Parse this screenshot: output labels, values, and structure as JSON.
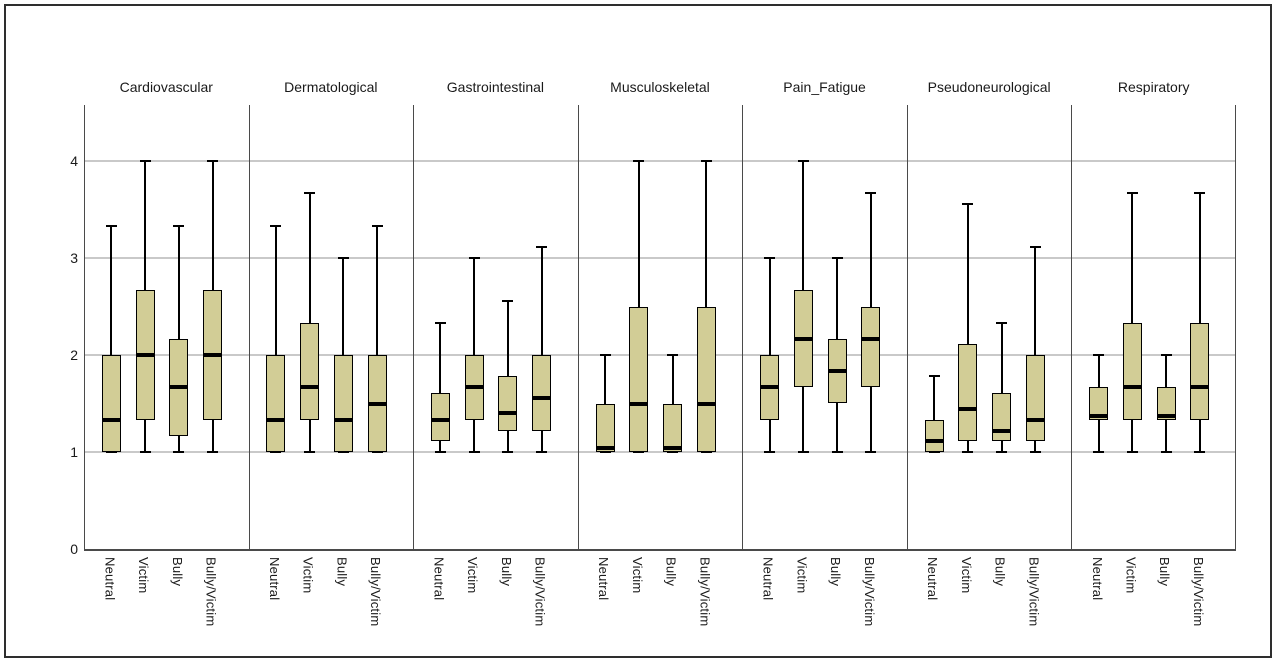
{
  "figure": {
    "background": "#ffffff",
    "border_color": "#2e2e2e"
  },
  "chart_data": {
    "type": "boxplot",
    "layout": "7 side-by-side panels, 4 boxplots per panel, shared y axis",
    "title": "",
    "xlabel": "",
    "ylabel": "",
    "categories": [
      "Neutral",
      "Victim",
      "Bully",
      "Bully/Victim"
    ],
    "y_axis": {
      "ticks": [
        0,
        1,
        2,
        3,
        4
      ],
      "min": 0,
      "max": 4.58,
      "gridlines_at": [
        1,
        2,
        3,
        4
      ]
    },
    "panels": [
      {
        "title": "Cardiovascular",
        "boxes": [
          {
            "category": "Neutral",
            "whisker_low": 1,
            "q1": 1.0,
            "median": 1.33,
            "q3": 2.0,
            "whisker_high": 3.33
          },
          {
            "category": "Victim",
            "whisker_low": 1,
            "q1": 1.33,
            "median": 2.0,
            "q3": 2.67,
            "whisker_high": 4.0
          },
          {
            "category": "Bully",
            "whisker_low": 1,
            "q1": 1.17,
            "median": 1.67,
            "q3": 2.17,
            "whisker_high": 3.33
          },
          {
            "category": "Bully/Victim",
            "whisker_low": 1,
            "q1": 1.33,
            "median": 2.0,
            "q3": 2.67,
            "whisker_high": 4.0
          }
        ]
      },
      {
        "title": "Dermatological",
        "boxes": [
          {
            "category": "Neutral",
            "whisker_low": 1,
            "q1": 1.0,
            "median": 1.33,
            "q3": 2.0,
            "whisker_high": 3.33
          },
          {
            "category": "Victim",
            "whisker_low": 1,
            "q1": 1.33,
            "median": 1.67,
            "q3": 2.33,
            "whisker_high": 3.67
          },
          {
            "category": "Bully",
            "whisker_low": 1,
            "q1": 1.0,
            "median": 1.33,
            "q3": 2.0,
            "whisker_high": 3.0
          },
          {
            "category": "Bully/Victim",
            "whisker_low": 1,
            "q1": 1.0,
            "median": 1.5,
            "q3": 2.0,
            "whisker_high": 3.33
          }
        ]
      },
      {
        "title": "Gastrointestinal",
        "boxes": [
          {
            "category": "Neutral",
            "whisker_low": 1,
            "q1": 1.11,
            "median": 1.33,
            "q3": 1.61,
            "whisker_high": 2.33
          },
          {
            "category": "Victim",
            "whisker_low": 1,
            "q1": 1.33,
            "median": 1.67,
            "q3": 2.0,
            "whisker_high": 3.0
          },
          {
            "category": "Bully",
            "whisker_low": 1,
            "q1": 1.22,
            "median": 1.4,
            "q3": 1.78,
            "whisker_high": 2.56
          },
          {
            "category": "Bully/Victim",
            "whisker_low": 1,
            "q1": 1.22,
            "median": 1.56,
            "q3": 2.0,
            "whisker_high": 3.11
          }
        ]
      },
      {
        "title": "Musculoskeletal",
        "boxes": [
          {
            "category": "Neutral",
            "whisker_low": 1,
            "q1": 1.0,
            "median": 1.0,
            "q3": 1.5,
            "whisker_high": 2.0
          },
          {
            "category": "Victim",
            "whisker_low": 1,
            "q1": 1.0,
            "median": 1.5,
            "q3": 2.5,
            "whisker_high": 4.0
          },
          {
            "category": "Bully",
            "whisker_low": 1,
            "q1": 1.0,
            "median": 1.0,
            "q3": 1.5,
            "whisker_high": 2.0
          },
          {
            "category": "Bully/Victim",
            "whisker_low": 1,
            "q1": 1.0,
            "median": 1.5,
            "q3": 2.5,
            "whisker_high": 4.0
          }
        ]
      },
      {
        "title": "Pain_Fatigue",
        "boxes": [
          {
            "category": "Neutral",
            "whisker_low": 1,
            "q1": 1.33,
            "median": 1.67,
            "q3": 2.0,
            "whisker_high": 3.0
          },
          {
            "category": "Victim",
            "whisker_low": 1,
            "q1": 1.67,
            "median": 2.17,
            "q3": 2.67,
            "whisker_high": 4.0
          },
          {
            "category": "Bully",
            "whisker_low": 1,
            "q1": 1.5,
            "median": 1.83,
            "q3": 2.17,
            "whisker_high": 3.0
          },
          {
            "category": "Bully/Victim",
            "whisker_low": 1,
            "q1": 1.67,
            "median": 2.17,
            "q3": 2.5,
            "whisker_high": 3.67
          }
        ]
      },
      {
        "title": "Pseudoneurological",
        "boxes": [
          {
            "category": "Neutral",
            "whisker_low": 1,
            "q1": 1.0,
            "median": 1.11,
            "q3": 1.33,
            "whisker_high": 1.78
          },
          {
            "category": "Victim",
            "whisker_low": 1,
            "q1": 1.11,
            "median": 1.44,
            "q3": 2.11,
            "whisker_high": 3.56
          },
          {
            "category": "Bully",
            "whisker_low": 1,
            "q1": 1.11,
            "median": 1.22,
            "q3": 1.61,
            "whisker_high": 2.33
          },
          {
            "category": "Bully/Victim",
            "whisker_low": 1,
            "q1": 1.11,
            "median": 1.33,
            "q3": 2.0,
            "whisker_high": 3.11
          }
        ]
      },
      {
        "title": "Respiratory",
        "boxes": [
          {
            "category": "Neutral",
            "whisker_low": 1,
            "q1": 1.33,
            "median": 1.33,
            "q3": 1.67,
            "whisker_high": 2.0
          },
          {
            "category": "Victim",
            "whisker_low": 1,
            "q1": 1.33,
            "median": 1.67,
            "q3": 2.33,
            "whisker_high": 3.67
          },
          {
            "category": "Bully",
            "whisker_low": 1,
            "q1": 1.33,
            "median": 1.33,
            "q3": 1.67,
            "whisker_high": 2.0
          },
          {
            "category": "Bully/Victim",
            "whisker_low": 1,
            "q1": 1.33,
            "median": 1.67,
            "q3": 2.33,
            "whisker_high": 3.67
          }
        ]
      }
    ],
    "colors": {
      "box_fill": "#d2cd96",
      "box_border": "#000000",
      "median": "#000000",
      "whisker": "#000000",
      "gridline": "#c9c9c9",
      "panel_frame": "#4a4a4a",
      "text": "#1a1a1a"
    },
    "legend": "none"
  }
}
